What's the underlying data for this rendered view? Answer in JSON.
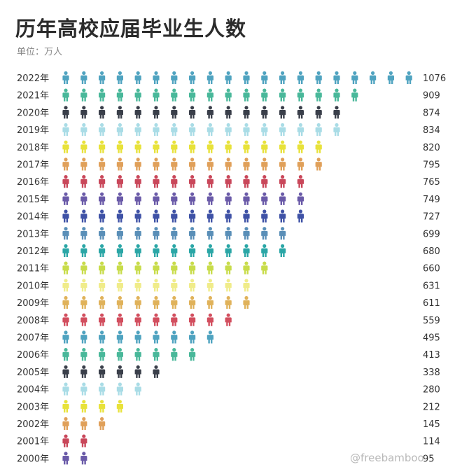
{
  "title": "历年高校应届毕业生人数",
  "unit_label": "单位：万人",
  "watermark": "@freebamboo",
  "chart_data": {
    "type": "bar",
    "title": "历年高校应届毕业生人数",
    "unit": "单位：万人",
    "categories": [
      "2022年",
      "2021年",
      "2020年",
      "2019年",
      "2018年",
      "2017年",
      "2016年",
      "2015年",
      "2014年",
      "2013年",
      "2012年",
      "2011年",
      "2010年",
      "2009年",
      "2008年",
      "2007年",
      "2006年",
      "2005年",
      "2004年",
      "2003年",
      "2002年",
      "2001年",
      "2000年"
    ],
    "values": [
      1076,
      909,
      874,
      834,
      820,
      795,
      765,
      749,
      727,
      699,
      680,
      660,
      631,
      611,
      559,
      495,
      413,
      338,
      280,
      212,
      145,
      114,
      95
    ],
    "value_labels": [
      "1076",
      "909",
      "874",
      "834",
      "820",
      "795",
      "765",
      "749",
      "727",
      "699",
      "680",
      "660",
      "631",
      "611",
      "559",
      "495",
      "413",
      "338",
      "280",
      "212",
      "145",
      "114",
      "95"
    ],
    "icon_counts": [
      20,
      17,
      16,
      16,
      15,
      15,
      14,
      14,
      14,
      13,
      13,
      12,
      11,
      11,
      10,
      9,
      8,
      6,
      5,
      4,
      3,
      2,
      2
    ],
    "row_colors": [
      "#4fa3c0",
      "#49b89a",
      "#3a3f4a",
      "#a9dce6",
      "#e8e23a",
      "#e0a05a",
      "#c9475a",
      "#6a5aa8",
      "#3f52a6",
      "#5a8fb8",
      "#2aa6a6",
      "#c8dc4a",
      "#f0ec8a",
      "#e0b25a",
      "#d24e5e",
      "#4fa3c0",
      "#49b89a",
      "#3a3f4a",
      "#a9dce6",
      "#e8e23a",
      "#e0a05a",
      "#c9475a",
      "#6a5aa8"
    ],
    "icon": "person-icon",
    "xlabel": "",
    "ylabel": ""
  }
}
